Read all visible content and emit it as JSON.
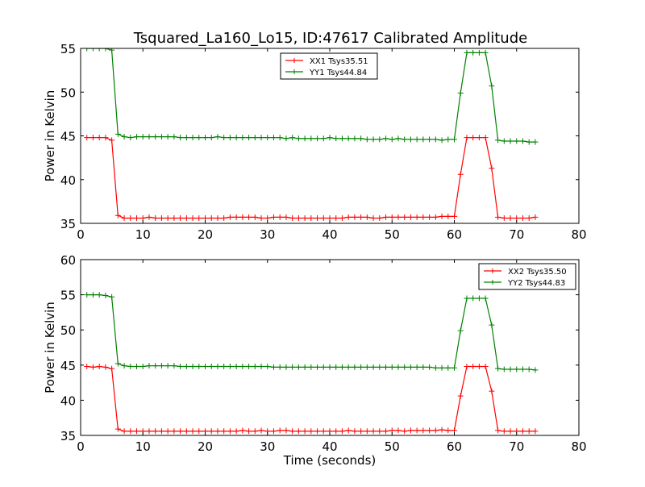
{
  "title": "Tsquared_La160_Lo15, ID:47617 Calibrated Amplitude",
  "chart_data": [
    {
      "type": "line",
      "title": "Tsquared_La160_Lo15, ID:47617 Calibrated Amplitude",
      "xlabel": "",
      "ylabel": "Power in Kelvin",
      "xlim": [
        0,
        80
      ],
      "ylim": [
        35,
        55
      ],
      "xticks": [
        0,
        10,
        20,
        30,
        40,
        50,
        60,
        70,
        80
      ],
      "yticks": [
        35,
        40,
        45,
        50,
        55
      ],
      "grid": false,
      "legend_position": "top-center",
      "x": [
        1,
        2,
        3,
        4,
        5,
        6,
        7,
        8,
        9,
        10,
        11,
        12,
        13,
        14,
        15,
        16,
        17,
        18,
        19,
        20,
        21,
        22,
        23,
        24,
        25,
        26,
        27,
        28,
        29,
        30,
        31,
        32,
        33,
        34,
        35,
        36,
        37,
        38,
        39,
        40,
        41,
        42,
        43,
        44,
        45,
        46,
        47,
        48,
        49,
        50,
        51,
        52,
        53,
        54,
        55,
        56,
        57,
        58,
        59,
        60,
        61,
        62,
        63,
        64,
        65,
        66,
        67,
        68,
        69,
        70,
        71,
        72,
        73
      ],
      "series": [
        {
          "name": "XX1 Tsys35.51",
          "color": "#ff0000",
          "values": [
            44.8,
            44.8,
            44.8,
            44.8,
            44.5,
            35.9,
            35.6,
            35.6,
            35.6,
            35.6,
            35.7,
            35.6,
            35.6,
            35.6,
            35.6,
            35.6,
            35.6,
            35.6,
            35.6,
            35.6,
            35.6,
            35.6,
            35.6,
            35.7,
            35.7,
            35.7,
            35.7,
            35.7,
            35.6,
            35.6,
            35.7,
            35.7,
            35.7,
            35.6,
            35.6,
            35.6,
            35.6,
            35.6,
            35.6,
            35.6,
            35.6,
            35.6,
            35.7,
            35.7,
            35.7,
            35.7,
            35.6,
            35.6,
            35.7,
            35.7,
            35.7,
            35.7,
            35.7,
            35.7,
            35.7,
            35.7,
            35.7,
            35.8,
            35.8,
            35.8,
            40.6,
            44.8,
            44.8,
            44.8,
            44.8,
            41.3,
            35.7,
            35.6,
            35.6,
            35.6,
            35.6,
            35.6,
            35.7
          ]
        },
        {
          "name": "YY1 Tsys44.84",
          "color": "#008000",
          "values": [
            55.0,
            55.0,
            55.0,
            55.0,
            54.8,
            45.2,
            44.9,
            44.8,
            44.9,
            44.9,
            44.9,
            44.9,
            44.9,
            44.9,
            44.9,
            44.8,
            44.8,
            44.8,
            44.8,
            44.8,
            44.8,
            44.9,
            44.8,
            44.8,
            44.8,
            44.8,
            44.8,
            44.8,
            44.8,
            44.8,
            44.8,
            44.8,
            44.7,
            44.8,
            44.7,
            44.7,
            44.7,
            44.7,
            44.7,
            44.8,
            44.7,
            44.7,
            44.7,
            44.7,
            44.7,
            44.6,
            44.6,
            44.6,
            44.7,
            44.6,
            44.7,
            44.6,
            44.6,
            44.6,
            44.6,
            44.6,
            44.6,
            44.5,
            44.6,
            44.6,
            49.9,
            54.5,
            54.5,
            54.5,
            54.5,
            50.7,
            44.5,
            44.4,
            44.4,
            44.4,
            44.4,
            44.3,
            44.3
          ]
        }
      ]
    },
    {
      "type": "line",
      "title": "",
      "xlabel": "Time (seconds)",
      "ylabel": "Power in Kelvin",
      "xlim": [
        0,
        80
      ],
      "ylim": [
        35,
        60
      ],
      "xticks": [
        0,
        10,
        20,
        30,
        40,
        50,
        60,
        70,
        80
      ],
      "yticks": [
        35,
        40,
        45,
        50,
        55,
        60
      ],
      "grid": false,
      "legend_position": "top-right",
      "x": [
        1,
        2,
        3,
        4,
        5,
        6,
        7,
        8,
        9,
        10,
        11,
        12,
        13,
        14,
        15,
        16,
        17,
        18,
        19,
        20,
        21,
        22,
        23,
        24,
        25,
        26,
        27,
        28,
        29,
        30,
        31,
        32,
        33,
        34,
        35,
        36,
        37,
        38,
        39,
        40,
        41,
        42,
        43,
        44,
        45,
        46,
        47,
        48,
        49,
        50,
        51,
        52,
        53,
        54,
        55,
        56,
        57,
        58,
        59,
        60,
        61,
        62,
        63,
        64,
        65,
        66,
        67,
        68,
        69,
        70,
        71,
        72,
        73
      ],
      "series": [
        {
          "name": "XX2 Tsys35.50",
          "color": "#ff0000",
          "values": [
            44.8,
            44.7,
            44.8,
            44.7,
            44.5,
            35.9,
            35.6,
            35.6,
            35.6,
            35.6,
            35.6,
            35.6,
            35.6,
            35.6,
            35.6,
            35.6,
            35.6,
            35.6,
            35.6,
            35.6,
            35.6,
            35.6,
            35.6,
            35.6,
            35.6,
            35.7,
            35.6,
            35.6,
            35.7,
            35.6,
            35.6,
            35.7,
            35.7,
            35.6,
            35.6,
            35.6,
            35.6,
            35.6,
            35.6,
            35.6,
            35.6,
            35.6,
            35.7,
            35.6,
            35.6,
            35.6,
            35.6,
            35.6,
            35.6,
            35.7,
            35.7,
            35.6,
            35.7,
            35.7,
            35.7,
            35.7,
            35.7,
            35.8,
            35.7,
            35.7,
            40.6,
            44.8,
            44.8,
            44.8,
            44.8,
            41.3,
            35.7,
            35.6,
            35.6,
            35.6,
            35.6,
            35.6,
            35.6
          ]
        },
        {
          "name": "YY2 Tsys44.83",
          "color": "#008000",
          "values": [
            55.0,
            55.0,
            55.0,
            54.9,
            54.7,
            45.2,
            44.9,
            44.8,
            44.8,
            44.8,
            44.9,
            44.9,
            44.9,
            44.9,
            44.9,
            44.8,
            44.8,
            44.8,
            44.8,
            44.8,
            44.8,
            44.8,
            44.8,
            44.8,
            44.8,
            44.8,
            44.8,
            44.8,
            44.8,
            44.8,
            44.7,
            44.7,
            44.7,
            44.7,
            44.7,
            44.7,
            44.7,
            44.7,
            44.7,
            44.7,
            44.7,
            44.7,
            44.7,
            44.7,
            44.7,
            44.7,
            44.7,
            44.7,
            44.7,
            44.7,
            44.7,
            44.7,
            44.7,
            44.7,
            44.7,
            44.7,
            44.6,
            44.6,
            44.6,
            44.6,
            49.9,
            54.5,
            54.5,
            54.5,
            54.5,
            50.7,
            44.5,
            44.4,
            44.4,
            44.4,
            44.4,
            44.4,
            44.3
          ]
        }
      ]
    }
  ]
}
